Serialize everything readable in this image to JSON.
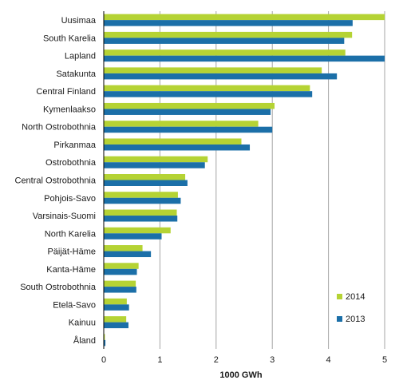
{
  "chart_data": {
    "type": "bar",
    "orientation": "horizontal",
    "categories": [
      "Uusimaa",
      "South Karelia",
      "Lapland",
      "Satakunta",
      "Central Finland",
      "Kymenlaakso",
      "North Ostrobothnia",
      "Pirkanmaa",
      "Ostrobothnia",
      "Central Ostrobothnia",
      "Pohjois-Savo",
      "Varsinais-Suomi",
      "North Karelia",
      "Päijät-Häme",
      "Kanta-Häme",
      "South Ostrobothnia",
      "Etelä-Savo",
      "Kainuu",
      "Åland"
    ],
    "series": [
      {
        "name": "2014",
        "color": "#b5d334",
        "values": [
          5.0,
          4.42,
          4.3,
          3.88,
          3.67,
          3.04,
          2.75,
          2.45,
          1.85,
          1.45,
          1.32,
          1.3,
          1.19,
          0.69,
          0.62,
          0.57,
          0.41,
          0.4,
          0.02
        ]
      },
      {
        "name": "2013",
        "color": "#1b6fa8",
        "values": [
          4.43,
          4.28,
          5.0,
          4.15,
          3.71,
          2.97,
          3.0,
          2.6,
          1.8,
          1.49,
          1.37,
          1.31,
          1.03,
          0.84,
          0.59,
          0.58,
          0.45,
          0.44,
          0.03
        ]
      }
    ],
    "xticks": [
      "0",
      "1",
      "2",
      "3",
      "4",
      "5"
    ],
    "xlim": [
      0,
      5
    ],
    "xlabel": "1000 GWh",
    "ylabel": "",
    "title": "",
    "grid": true,
    "legend_position": "bottom-right"
  }
}
